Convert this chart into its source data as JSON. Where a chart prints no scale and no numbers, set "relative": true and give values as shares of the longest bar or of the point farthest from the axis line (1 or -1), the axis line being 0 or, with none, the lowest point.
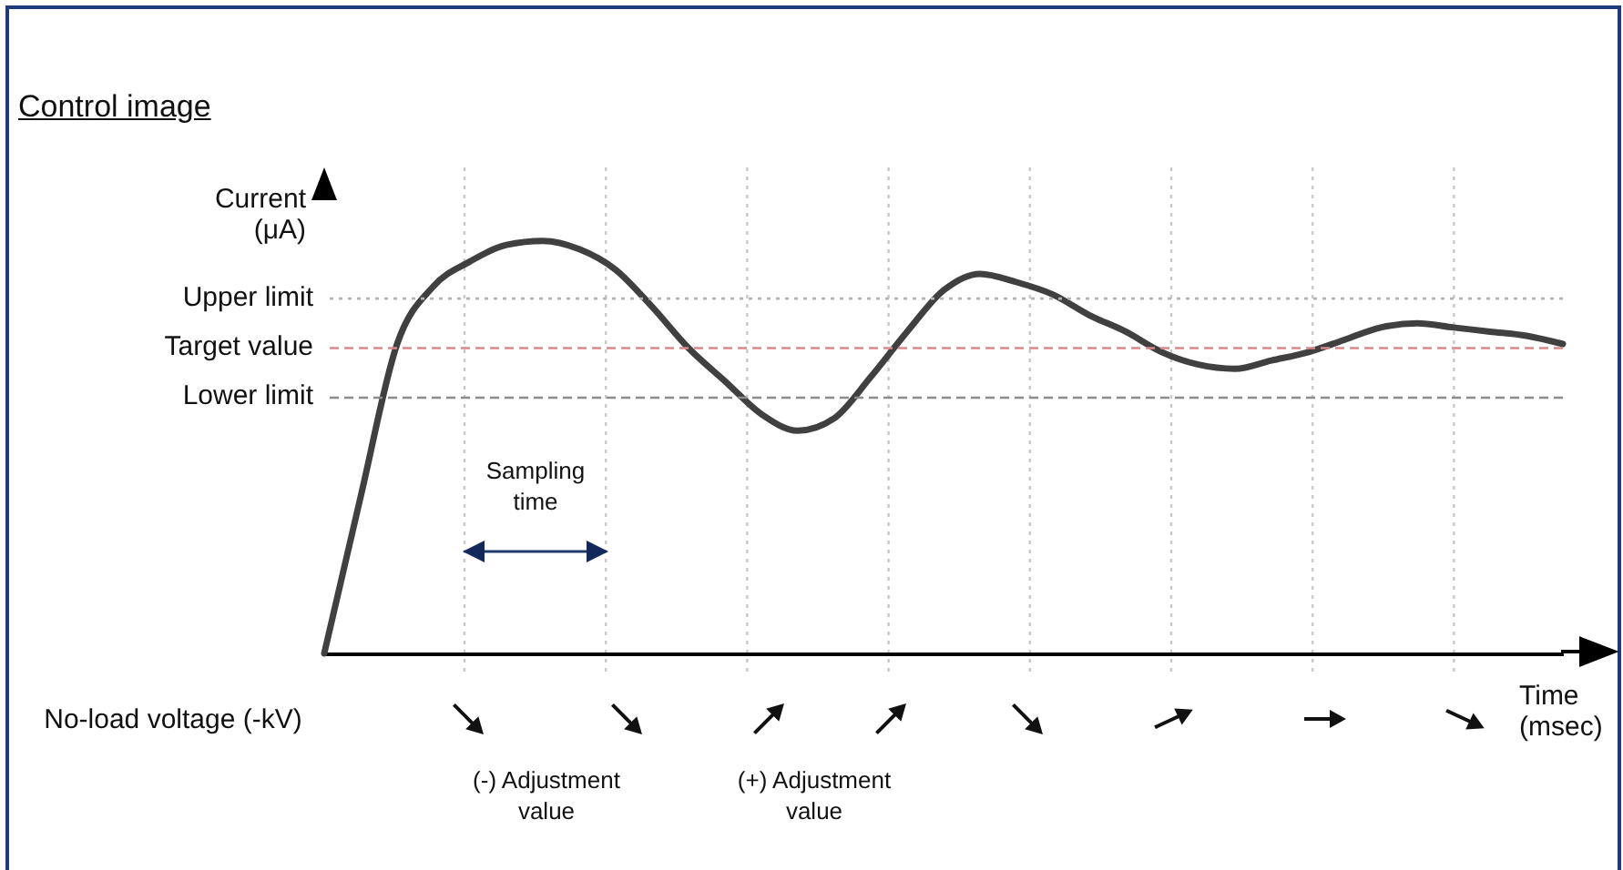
{
  "chart_data": {
    "type": "line",
    "title": "Control image",
    "xlabel": "Time (msec)",
    "ylabel": "Current (μA)",
    "relative": true,
    "grid": false,
    "marker": "none",
    "categories": [
      null,
      null,
      null,
      null,
      null,
      null,
      null,
      null,
      null,
      null,
      null,
      null,
      null,
      null,
      null,
      null,
      null,
      null,
      null,
      null,
      null,
      null,
      null,
      null,
      null,
      null,
      null,
      null,
      null,
      null,
      null,
      null,
      null,
      null,
      null
    ],
    "series": [
      {
        "color": "#404040",
        "values": [
          0,
          0.38,
          0.75,
          0.89,
          0.95,
          0.99,
          1.0,
          0.98,
          0.93,
          0.84,
          0.74,
          0.66,
          0.58,
          0.54,
          0.57,
          0.67,
          0.78,
          0.88,
          0.92,
          0.9,
          0.87,
          0.82,
          0.78,
          0.73,
          0.7,
          0.69,
          0.71,
          0.73,
          0.76,
          0.79,
          0.8,
          0.79,
          0.78,
          0.77,
          0.75
        ]
      }
    ],
    "ref_lines": [
      {
        "axis": "y",
        "value": 0.86,
        "label": "Upper limit",
        "color": "#b4b4b4",
        "line_style": "dotted"
      },
      {
        "axis": "y",
        "value": 0.74,
        "label": "Target value",
        "color": "#d88a8a",
        "line_style": "dashed"
      },
      {
        "axis": "y",
        "value": 0.62,
        "label": "Lower limit",
        "color": "#8c8c8c",
        "line_style": "dashed"
      }
    ],
    "annotations": [
      "Sampling time",
      "No-load voltage (-kV)",
      "(-) Adjustment value",
      "(+) Adjustment value"
    ]
  }
}
